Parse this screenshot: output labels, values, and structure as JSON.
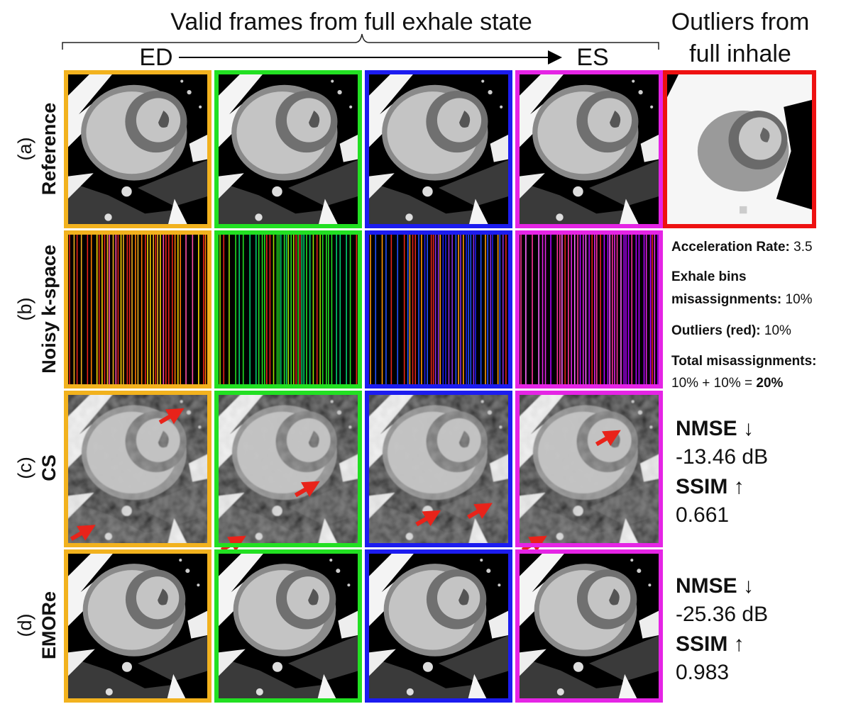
{
  "header": {
    "title": "Valid frames from full exhale state",
    "start_label": "ED",
    "end_label": "ES",
    "outlier_title": [
      "Outliers from",
      "full inhale"
    ]
  },
  "rows": [
    {
      "tag": "(a)",
      "label": "Reference"
    },
    {
      "tag": "(b)",
      "label": "Noisy k-space"
    },
    {
      "tag": "(c)",
      "label": "CS"
    },
    {
      "tag": "(d)",
      "label": "EMORe"
    }
  ],
  "settings": {
    "acceleration_rate": {
      "label": "Acceleration Rate:",
      "value": "3.5"
    },
    "exhale_bins": {
      "label": [
        "Exhale bins",
        "misassignments:"
      ],
      "value": "10%"
    },
    "outliers": {
      "label": "Outliers (red):",
      "value": "10%"
    },
    "total": {
      "label": "Total misassignments:",
      "formula": "10% + 10% =",
      "value": "20%"
    }
  },
  "metrics": [
    {
      "nmse_label": "NMSE ↓",
      "nmse": "-13.46 dB",
      "ssim_label": "SSIM ↑",
      "ssim": "0.661"
    },
    {
      "nmse_label": "NMSE ↓",
      "nmse": "-25.36 dB",
      "ssim_label": "SSIM ↑",
      "ssim": "0.983"
    }
  ]
}
